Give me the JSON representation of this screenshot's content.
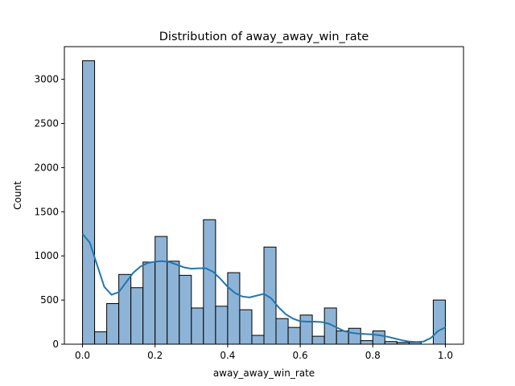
{
  "chart_data": {
    "type": "bar",
    "subtype": "histogram with kde",
    "title": "Distribution of away_away_win_rate",
    "xlabel": "away_away_win_rate",
    "ylabel": "Count",
    "xlim": [
      -0.05,
      1.05
    ],
    "ylim": [
      0,
      3370
    ],
    "grid": false,
    "legend": "none",
    "colors": {
      "bar_fill": "#8db4d6",
      "bar_edge": "#000000",
      "kde_line": "#1f77b4"
    },
    "x_ticks": [
      0.0,
      0.2,
      0.4,
      0.6,
      0.8,
      1.0
    ],
    "x_tick_labels": [
      "0.0",
      "0.2",
      "0.4",
      "0.6",
      "0.8",
      "1.0"
    ],
    "y_ticks": [
      0,
      500,
      1000,
      1500,
      2000,
      2500,
      3000
    ],
    "y_tick_labels": [
      "0",
      "500",
      "1000",
      "1500",
      "2000",
      "2500",
      "3000"
    ],
    "bin_width": 0.0333,
    "bins": [
      {
        "x0": 0.0,
        "x1": 0.0333,
        "count": 3210
      },
      {
        "x0": 0.0333,
        "x1": 0.0667,
        "count": 140
      },
      {
        "x0": 0.0667,
        "x1": 0.1,
        "count": 460
      },
      {
        "x0": 0.1,
        "x1": 0.1333,
        "count": 790
      },
      {
        "x0": 0.1333,
        "x1": 0.1667,
        "count": 640
      },
      {
        "x0": 0.1667,
        "x1": 0.2,
        "count": 930
      },
      {
        "x0": 0.2,
        "x1": 0.2333,
        "count": 1220
      },
      {
        "x0": 0.2333,
        "x1": 0.2667,
        "count": 940
      },
      {
        "x0": 0.2667,
        "x1": 0.3,
        "count": 780
      },
      {
        "x0": 0.3,
        "x1": 0.3333,
        "count": 410
      },
      {
        "x0": 0.3333,
        "x1": 0.3667,
        "count": 1410
      },
      {
        "x0": 0.3667,
        "x1": 0.4,
        "count": 430
      },
      {
        "x0": 0.4,
        "x1": 0.4333,
        "count": 810
      },
      {
        "x0": 0.4333,
        "x1": 0.4667,
        "count": 390
      },
      {
        "x0": 0.4667,
        "x1": 0.5,
        "count": 100
      },
      {
        "x0": 0.5,
        "x1": 0.5333,
        "count": 1100
      },
      {
        "x0": 0.5333,
        "x1": 0.5667,
        "count": 290
      },
      {
        "x0": 0.5667,
        "x1": 0.6,
        "count": 190
      },
      {
        "x0": 0.6,
        "x1": 0.6333,
        "count": 330
      },
      {
        "x0": 0.6333,
        "x1": 0.6667,
        "count": 90
      },
      {
        "x0": 0.6667,
        "x1": 0.7,
        "count": 410
      },
      {
        "x0": 0.7,
        "x1": 0.7333,
        "count": 150
      },
      {
        "x0": 0.7333,
        "x1": 0.7667,
        "count": 180
      },
      {
        "x0": 0.7667,
        "x1": 0.8,
        "count": 40
      },
      {
        "x0": 0.8,
        "x1": 0.8333,
        "count": 150
      },
      {
        "x0": 0.8333,
        "x1": 0.8667,
        "count": 30
      },
      {
        "x0": 0.8667,
        "x1": 0.9,
        "count": 20
      },
      {
        "x0": 0.9,
        "x1": 0.9333,
        "count": 20
      },
      {
        "x0": 0.9333,
        "x1": 0.9667,
        "count": 0
      },
      {
        "x0": 0.9667,
        "x1": 1.0,
        "count": 500
      }
    ],
    "kde": {
      "x": [
        0.0,
        0.02,
        0.04,
        0.06,
        0.08,
        0.1,
        0.12,
        0.14,
        0.16,
        0.18,
        0.2,
        0.22,
        0.24,
        0.26,
        0.28,
        0.3,
        0.32,
        0.34,
        0.36,
        0.38,
        0.4,
        0.42,
        0.44,
        0.46,
        0.48,
        0.5,
        0.52,
        0.54,
        0.56,
        0.58,
        0.6,
        0.62,
        0.64,
        0.66,
        0.68,
        0.7,
        0.72,
        0.74,
        0.76,
        0.78,
        0.8,
        0.82,
        0.84,
        0.86,
        0.88,
        0.9,
        0.92,
        0.94,
        0.96,
        0.98,
        1.0
      ],
      "y": [
        1250,
        1150,
        900,
        650,
        560,
        590,
        700,
        810,
        880,
        920,
        935,
        940,
        930,
        900,
        870,
        855,
        860,
        860,
        820,
        740,
        650,
        580,
        540,
        530,
        550,
        570,
        520,
        420,
        340,
        290,
        260,
        255,
        255,
        250,
        230,
        190,
        150,
        130,
        120,
        115,
        110,
        100,
        85,
        65,
        45,
        30,
        25,
        30,
        70,
        150,
        190
      ]
    }
  }
}
